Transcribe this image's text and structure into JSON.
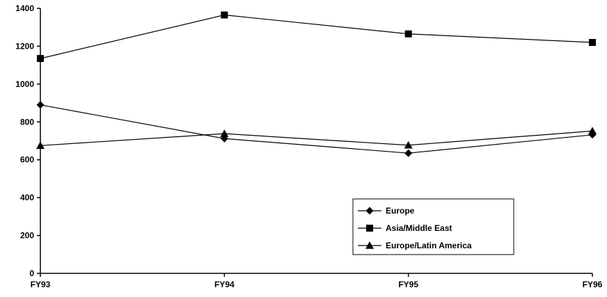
{
  "chart_data": {
    "type": "line",
    "categories": [
      "FY93",
      "FY94",
      "FY95",
      "FY96"
    ],
    "ylim": [
      0,
      1400
    ],
    "yticks": [
      0,
      200,
      400,
      600,
      800,
      1000,
      1200,
      1400
    ],
    "grid": false,
    "legend_position": "bottom-right",
    "series": [
      {
        "name": "Europe",
        "marker": "diamond",
        "values": [
          890,
          712,
          635,
          732
        ]
      },
      {
        "name": "Asia/Middle East",
        "marker": "square",
        "values": [
          1135,
          1365,
          1265,
          1220
        ]
      },
      {
        "name": "Europe/Latin America",
        "marker": "triangle",
        "values": [
          675,
          738,
          677,
          752
        ]
      }
    ],
    "colors": {
      "line": "#000000",
      "background": "#ffffff"
    }
  }
}
